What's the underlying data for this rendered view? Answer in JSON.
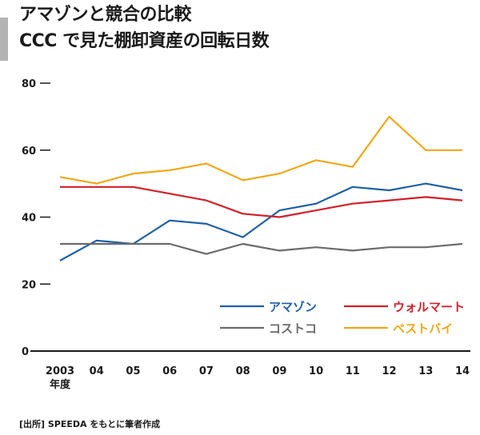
{
  "header": {
    "title_line1": "アマゾンと競合の比較",
    "title_line2": "CCC で見た棚卸資産の回転日数"
  },
  "source": "[出所] SPEEDA をもとに筆者作成",
  "chart_data": {
    "type": "line",
    "title": "アマゾンと競合の比較 CCC で見た棚卸資産の回転日数",
    "xlabel": "年度",
    "ylabel": "",
    "categories": [
      "2003",
      "04",
      "05",
      "06",
      "07",
      "08",
      "09",
      "10",
      "11",
      "12",
      "13",
      "14"
    ],
    "ylim": [
      0,
      80
    ],
    "yticks": [
      0,
      20,
      40,
      60,
      80
    ],
    "grid": false,
    "legend_position": "bottom-right",
    "series": [
      {
        "name": "アマゾン",
        "color": "#1f5fa8",
        "values": [
          27,
          33,
          32,
          39,
          38,
          34,
          42,
          44,
          49,
          48,
          50,
          48
        ]
      },
      {
        "name": "ウォルマート",
        "color": "#d2202a",
        "values": [
          49,
          49,
          49,
          47,
          45,
          41,
          40,
          42,
          44,
          45,
          46,
          45
        ]
      },
      {
        "name": "コストコ",
        "color": "#6b6b6b",
        "values": [
          32,
          32,
          32,
          32,
          29,
          32,
          30,
          31,
          30,
          31,
          31,
          32
        ]
      },
      {
        "name": "ベストバイ",
        "color": "#f0a818",
        "values": [
          52,
          50,
          53,
          54,
          56,
          51,
          53,
          57,
          55,
          70,
          60,
          60
        ]
      }
    ]
  }
}
